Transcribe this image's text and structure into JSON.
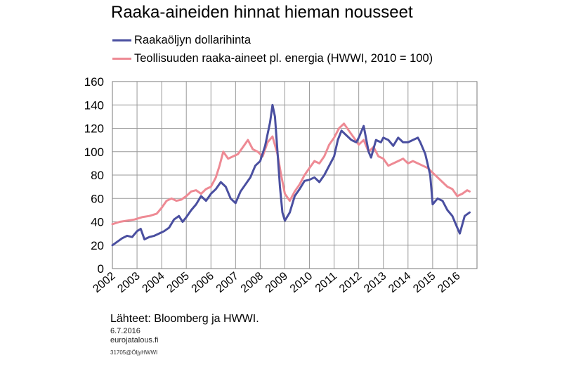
{
  "chart_data": {
    "type": "line",
    "title": "Raaka-aineiden hinnat hieman nousseet",
    "xlabel": "",
    "ylabel": "",
    "xlim": [
      2002,
      2016.8
    ],
    "ylim": [
      0,
      160
    ],
    "yticks": [
      0,
      20,
      40,
      60,
      80,
      100,
      120,
      140,
      160
    ],
    "xtick_labels": [
      "2002",
      "2003",
      "2004",
      "2005",
      "2006",
      "2007",
      "2008",
      "2009",
      "2010",
      "2011",
      "2012",
      "2013",
      "2014",
      "2015",
      "2016"
    ],
    "grid": true,
    "legend_position": "top-left",
    "series": [
      {
        "name": "Raakaöljyn dollarihinta",
        "color": "#4a4fa0",
        "x": [
          2002.0,
          2002.2,
          2002.4,
          2002.6,
          2002.8,
          2003.0,
          2003.15,
          2003.3,
          2003.5,
          2003.7,
          2003.9,
          2004.1,
          2004.3,
          2004.5,
          2004.7,
          2004.85,
          2005.0,
          2005.2,
          2005.4,
          2005.6,
          2005.8,
          2006.0,
          2006.2,
          2006.4,
          2006.6,
          2006.8,
          2007.0,
          2007.2,
          2007.4,
          2007.6,
          2007.8,
          2008.0,
          2008.2,
          2008.4,
          2008.5,
          2008.6,
          2008.7,
          2008.8,
          2008.9,
          2009.0,
          2009.2,
          2009.4,
          2009.6,
          2009.8,
          2010.0,
          2010.2,
          2010.4,
          2010.6,
          2010.8,
          2011.0,
          2011.15,
          2011.3,
          2011.5,
          2011.7,
          2011.9,
          2012.0,
          2012.2,
          2012.4,
          2012.5,
          2012.7,
          2012.9,
          2013.0,
          2013.2,
          2013.4,
          2013.6,
          2013.8,
          2014.0,
          2014.2,
          2014.4,
          2014.5,
          2014.7,
          2014.9,
          2015.0,
          2015.2,
          2015.4,
          2015.6,
          2015.8,
          2016.0,
          2016.1,
          2016.3,
          2016.5
        ],
        "values": [
          20,
          23,
          26,
          28,
          27,
          32,
          34,
          25,
          27,
          28,
          30,
          32,
          35,
          42,
          45,
          40,
          44,
          50,
          55,
          62,
          58,
          64,
          68,
          74,
          70,
          60,
          56,
          66,
          72,
          78,
          88,
          92,
          105,
          125,
          140,
          130,
          100,
          70,
          48,
          41,
          48,
          62,
          68,
          75,
          76,
          78,
          74,
          80,
          88,
          96,
          110,
          118,
          114,
          110,
          108,
          112,
          122,
          100,
          95,
          110,
          108,
          112,
          110,
          105,
          112,
          108,
          108,
          110,
          112,
          108,
          98,
          80,
          55,
          60,
          58,
          50,
          45,
          35,
          30,
          45,
          48
        ]
      },
      {
        "name": "Teollisuuden raaka-aineet pl. energia (HWWI, 2010 = 100)",
        "color": "#ee8a94",
        "x": [
          2002.0,
          2002.3,
          2002.6,
          2002.9,
          2003.2,
          2003.5,
          2003.8,
          2004.0,
          2004.2,
          2004.4,
          2004.6,
          2004.8,
          2005.0,
          2005.2,
          2005.4,
          2005.6,
          2005.8,
          2006.0,
          2006.2,
          2006.35,
          2006.5,
          2006.7,
          2006.9,
          2007.1,
          2007.3,
          2007.5,
          2007.7,
          2007.9,
          2008.1,
          2008.3,
          2008.5,
          2008.7,
          2008.85,
          2009.0,
          2009.2,
          2009.4,
          2009.6,
          2009.8,
          2010.0,
          2010.2,
          2010.4,
          2010.6,
          2010.8,
          2011.0,
          2011.2,
          2011.4,
          2011.6,
          2011.8,
          2012.0,
          2012.2,
          2012.4,
          2012.6,
          2012.8,
          2013.0,
          2013.2,
          2013.4,
          2013.6,
          2013.8,
          2014.0,
          2014.2,
          2014.4,
          2014.6,
          2014.8,
          2015.0,
          2015.2,
          2015.4,
          2015.6,
          2015.8,
          2016.0,
          2016.2,
          2016.4,
          2016.5
        ],
        "values": [
          38,
          40,
          41,
          42,
          44,
          45,
          47,
          52,
          58,
          60,
          58,
          59,
          62,
          66,
          67,
          64,
          68,
          70,
          78,
          88,
          100,
          94,
          96,
          98,
          104,
          110,
          102,
          100,
          96,
          108,
          113,
          98,
          80,
          64,
          58,
          66,
          72,
          80,
          86,
          92,
          90,
          96,
          106,
          112,
          120,
          124,
          118,
          112,
          106,
          110,
          100,
          104,
          96,
          94,
          88,
          90,
          92,
          94,
          90,
          92,
          90,
          88,
          86,
          82,
          78,
          74,
          70,
          68,
          62,
          64,
          67,
          66
        ]
      }
    ]
  },
  "notes": {
    "source": "Lähteet: Bloomberg ja HWWI.",
    "date": "6.7.2016",
    "site": "eurojatalous.fi",
    "code": "31705@ÖljyHWWI"
  }
}
